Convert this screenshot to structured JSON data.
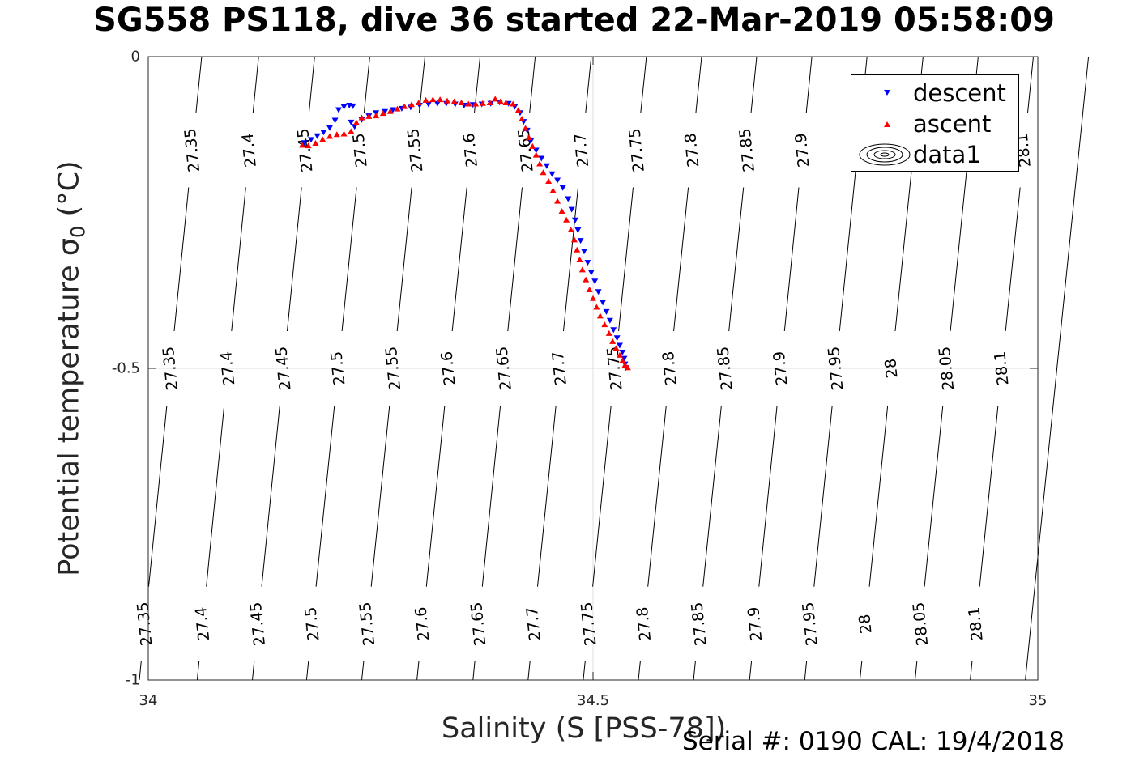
{
  "title": "SG558 PS118, dive 36 started 22-Mar-2019 05:58:09",
  "xlabel": "Salinity (S [PSS-78])",
  "ylabel_main": "Potential temperature σ",
  "ylabel_sub": "0",
  "ylabel_unit": " (°C)",
  "footer": "Serial #: 0190  CAL: 19/4/2018",
  "colors": {
    "descent": "#0000ff",
    "ascent": "#ff0000",
    "contour": "#000000",
    "axis": "#262626",
    "grid": "#dfdfdf"
  },
  "legend": [
    {
      "label": "descent",
      "marker": "triangle-down",
      "color": "#0000ff"
    },
    {
      "label": "ascent",
      "marker": "triangle-up",
      "color": "#ff0000"
    },
    {
      "label": "data1",
      "marker": "contour-ellipses",
      "color": "#000000"
    }
  ],
  "chart_data": {
    "type": "scatter",
    "xlim": [
      34,
      35
    ],
    "ylim": [
      -1,
      0
    ],
    "xticks": [
      "34",
      "34.5",
      "35"
    ],
    "yticks": [
      "0",
      "-0.5",
      "-1"
    ],
    "grid": true,
    "legend_position": "top-right",
    "contours": [
      {
        "level": "27.35",
        "s_at_top": 34.06,
        "s_at_bottom": 33.99,
        "labels_at_t": [
          -0.15,
          -0.5,
          -0.91
        ]
      },
      {
        "level": "27.4",
        "s_at_top": 34.124,
        "s_at_bottom": 34.055,
        "labels_at_t": [
          -0.15,
          -0.5,
          -0.91
        ]
      },
      {
        "level": "27.45",
        "s_at_top": 34.187,
        "s_at_bottom": 34.117,
        "labels_at_t": [
          -0.15,
          -0.5,
          -0.91
        ]
      },
      {
        "level": "27.5",
        "s_at_top": 34.249,
        "s_at_bottom": 34.178,
        "labels_at_t": [
          -0.15,
          -0.5,
          -0.91
        ]
      },
      {
        "level": "27.55",
        "s_at_top": 34.311,
        "s_at_bottom": 34.24,
        "labels_at_t": [
          -0.15,
          -0.5,
          -0.91
        ]
      },
      {
        "level": "27.6",
        "s_at_top": 34.373,
        "s_at_bottom": 34.302,
        "labels_at_t": [
          -0.15,
          -0.5,
          -0.91
        ]
      },
      {
        "level": "27.65",
        "s_at_top": 34.435,
        "s_at_bottom": 34.365,
        "labels_at_t": [
          -0.15,
          -0.5,
          -0.91
        ]
      },
      {
        "level": "27.7",
        "s_at_top": 34.498,
        "s_at_bottom": 34.427,
        "labels_at_t": [
          -0.15,
          -0.5,
          -0.91
        ]
      },
      {
        "level": "27.75",
        "s_at_top": 34.56,
        "s_at_bottom": 34.489,
        "labels_at_t": [
          -0.15,
          -0.5,
          -0.91
        ]
      },
      {
        "level": "27.8",
        "s_at_top": 34.622,
        "s_at_bottom": 34.551,
        "labels_at_t": [
          -0.15,
          -0.5,
          -0.91
        ]
      },
      {
        "level": "27.85",
        "s_at_top": 34.684,
        "s_at_bottom": 34.613,
        "labels_at_t": [
          -0.15,
          -0.5,
          -0.91
        ]
      },
      {
        "level": "27.9",
        "s_at_top": 34.746,
        "s_at_bottom": 34.676,
        "labels_at_t": [
          -0.15,
          -0.5,
          -0.91
        ]
      },
      {
        "level": "27.95",
        "s_at_top": 34.808,
        "s_at_bottom": 34.738,
        "labels_at_t": [
          -0.5,
          -0.91
        ]
      },
      {
        "level": "28",
        "s_at_top": 34.871,
        "s_at_bottom": 34.8,
        "labels_at_t": [
          -0.5,
          -0.91
        ]
      },
      {
        "level": "28.05",
        "s_at_top": 34.933,
        "s_at_bottom": 34.862,
        "labels_at_t": [
          -0.5,
          -0.91
        ]
      },
      {
        "level": "28.1",
        "s_at_top": 34.995,
        "s_at_bottom": 34.924,
        "labels_at_t": [
          -0.15,
          -0.5,
          -0.91
        ]
      },
      {
        "level": "",
        "s_at_top": 35.057,
        "s_at_bottom": 34.986,
        "labels_at_t": []
      }
    ],
    "series": [
      {
        "name": "descent",
        "marker": "v",
        "points": [
          [
            34.175,
            -0.138
          ],
          [
            34.183,
            -0.133
          ],
          [
            34.19,
            -0.127
          ],
          [
            34.197,
            -0.121
          ],
          [
            34.204,
            -0.114
          ],
          [
            34.21,
            -0.102
          ],
          [
            34.214,
            -0.085
          ],
          [
            34.22,
            -0.08
          ],
          [
            34.226,
            -0.078
          ],
          [
            34.23,
            -0.079
          ],
          [
            34.228,
            -0.105
          ],
          [
            34.232,
            -0.112
          ],
          [
            34.24,
            -0.101
          ],
          [
            34.248,
            -0.095
          ],
          [
            34.256,
            -0.09
          ],
          [
            34.266,
            -0.088
          ],
          [
            34.275,
            -0.085
          ],
          [
            34.285,
            -0.083
          ],
          [
            34.295,
            -0.081
          ],
          [
            34.305,
            -0.078
          ],
          [
            34.315,
            -0.076
          ],
          [
            34.325,
            -0.075
          ],
          [
            34.335,
            -0.075
          ],
          [
            34.345,
            -0.076
          ],
          [
            34.355,
            -0.078
          ],
          [
            34.365,
            -0.077
          ],
          [
            34.375,
            -0.076
          ],
          [
            34.385,
            -0.075
          ],
          [
            34.395,
            -0.073
          ],
          [
            34.405,
            -0.075
          ],
          [
            34.412,
            -0.08
          ],
          [
            34.418,
            -0.09
          ],
          [
            34.422,
            -0.104
          ],
          [
            34.426,
            -0.118
          ],
          [
            34.43,
            -0.135
          ],
          [
            34.436,
            -0.15
          ],
          [
            34.442,
            -0.163
          ],
          [
            34.448,
            -0.175
          ],
          [
            34.454,
            -0.188
          ],
          [
            34.46,
            -0.198
          ],
          [
            34.466,
            -0.21
          ],
          [
            34.472,
            -0.228
          ],
          [
            34.476,
            -0.245
          ],
          [
            34.48,
            -0.262
          ],
          [
            34.483,
            -0.278
          ],
          [
            34.486,
            -0.295
          ],
          [
            34.49,
            -0.312
          ],
          [
            34.494,
            -0.33
          ],
          [
            34.498,
            -0.346
          ],
          [
            34.502,
            -0.36
          ],
          [
            34.506,
            -0.377
          ],
          [
            34.511,
            -0.394
          ],
          [
            34.515,
            -0.409
          ],
          [
            34.519,
            -0.423
          ],
          [
            34.523,
            -0.438
          ],
          [
            34.527,
            -0.451
          ],
          [
            34.53,
            -0.463
          ],
          [
            34.533,
            -0.474
          ],
          [
            34.535,
            -0.484
          ],
          [
            34.536,
            -0.493
          ],
          [
            34.537,
            -0.499
          ]
        ]
      },
      {
        "name": "ascent",
        "marker": "^",
        "points": [
          [
            34.173,
            -0.142
          ],
          [
            34.18,
            -0.143
          ],
          [
            34.188,
            -0.139
          ],
          [
            34.196,
            -0.133
          ],
          [
            34.204,
            -0.128
          ],
          [
            34.212,
            -0.125
          ],
          [
            34.22,
            -0.124
          ],
          [
            34.228,
            -0.12
          ],
          [
            34.234,
            -0.106
          ],
          [
            34.24,
            -0.098
          ],
          [
            34.248,
            -0.096
          ],
          [
            34.256,
            -0.095
          ],
          [
            34.264,
            -0.091
          ],
          [
            34.272,
            -0.088
          ],
          [
            34.28,
            -0.084
          ],
          [
            34.288,
            -0.08
          ],
          [
            34.296,
            -0.077
          ],
          [
            34.304,
            -0.074
          ],
          [
            34.312,
            -0.07
          ],
          [
            34.32,
            -0.069
          ],
          [
            34.328,
            -0.069
          ],
          [
            34.336,
            -0.071
          ],
          [
            34.344,
            -0.072
          ],
          [
            34.352,
            -0.074
          ],
          [
            34.36,
            -0.076
          ],
          [
            34.368,
            -0.076
          ],
          [
            34.376,
            -0.075
          ],
          [
            34.384,
            -0.074
          ],
          [
            34.39,
            -0.068
          ],
          [
            34.396,
            -0.072
          ],
          [
            34.402,
            -0.074
          ],
          [
            34.41,
            -0.076
          ],
          [
            34.416,
            -0.086
          ],
          [
            34.42,
            -0.1
          ],
          [
            34.424,
            -0.115
          ],
          [
            34.428,
            -0.13
          ],
          [
            34.432,
            -0.144
          ],
          [
            34.436,
            -0.158
          ],
          [
            34.44,
            -0.172
          ],
          [
            34.444,
            -0.186
          ],
          [
            34.45,
            -0.2
          ],
          [
            34.455,
            -0.215
          ],
          [
            34.46,
            -0.232
          ],
          [
            34.465,
            -0.248
          ],
          [
            34.47,
            -0.262
          ],
          [
            34.475,
            -0.278
          ],
          [
            34.479,
            -0.294
          ],
          [
            34.482,
            -0.31
          ],
          [
            34.485,
            -0.326
          ],
          [
            34.488,
            -0.342
          ],
          [
            34.492,
            -0.358
          ],
          [
            34.496,
            -0.374
          ],
          [
            34.5,
            -0.388
          ],
          [
            34.504,
            -0.402
          ],
          [
            34.508,
            -0.416
          ],
          [
            34.513,
            -0.43
          ],
          [
            34.518,
            -0.444
          ],
          [
            34.522,
            -0.457
          ],
          [
            34.526,
            -0.468
          ],
          [
            34.53,
            -0.479
          ],
          [
            34.533,
            -0.488
          ],
          [
            34.536,
            -0.495
          ],
          [
            34.539,
            -0.499
          ]
        ]
      }
    ]
  }
}
